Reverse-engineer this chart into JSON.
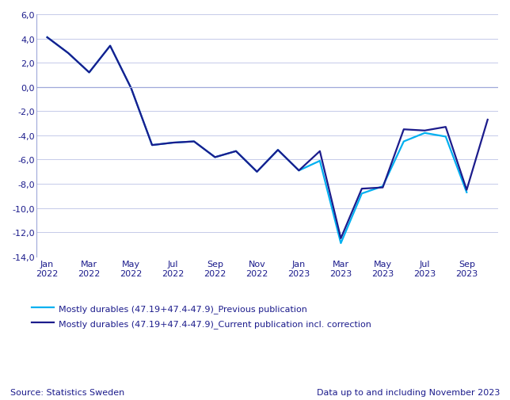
{
  "current_series": [
    4.1,
    2.8,
    1.2,
    3.4,
    -0.1,
    -4.8,
    -4.6,
    -4.5,
    -5.8,
    -5.3,
    -7.0,
    -5.2,
    -6.9,
    -5.3,
    -12.5,
    -8.4,
    -8.3,
    -3.5,
    -3.6,
    -3.3,
    -8.5,
    -2.7
  ],
  "previous_series": [
    4.1,
    2.8,
    1.2,
    3.4,
    -0.1,
    -4.8,
    -4.6,
    -4.5,
    -5.8,
    -5.3,
    -7.0,
    -5.2,
    -6.9,
    -6.1,
    -12.9,
    -8.8,
    -8.2,
    -4.5,
    -3.8,
    -4.1,
    -8.7,
    null
  ],
  "tick_positions": [
    0,
    2,
    4,
    6,
    8,
    10,
    12,
    14,
    16,
    18,
    20
  ],
  "tick_labels": [
    "Jan\n2022",
    "Mar\n2022",
    "May\n2022",
    "Jul\n2022",
    "Sep\n2022",
    "Nov\n2022",
    "Jan\n2023",
    "Mar\n2023",
    "May\n2023",
    "Jul\n2023",
    "Sep\n2023"
  ],
  "current_color": "#1C1C8C",
  "previous_color": "#00B0F0",
  "ylim": [
    -14.0,
    6.0
  ],
  "yticks": [
    6.0,
    4.0,
    2.0,
    0.0,
    -2.0,
    -4.0,
    -6.0,
    -8.0,
    -10.0,
    -12.0,
    -14.0
  ],
  "grid_color": "#C5CAE9",
  "background_color": "#FFFFFF",
  "legend_current": "Mostly durables (47.19+47.4-47.9)_Current publication incl. correction",
  "legend_previous": "Mostly durables (47.19+47.4-47.9)_Previous publication",
  "source_text": "Source: Statistics Sweden",
  "data_note": "Data up to and including November 2023",
  "label_color": "#1C1C8C",
  "axis_color": "#9FA8DA",
  "linewidth": 1.6
}
